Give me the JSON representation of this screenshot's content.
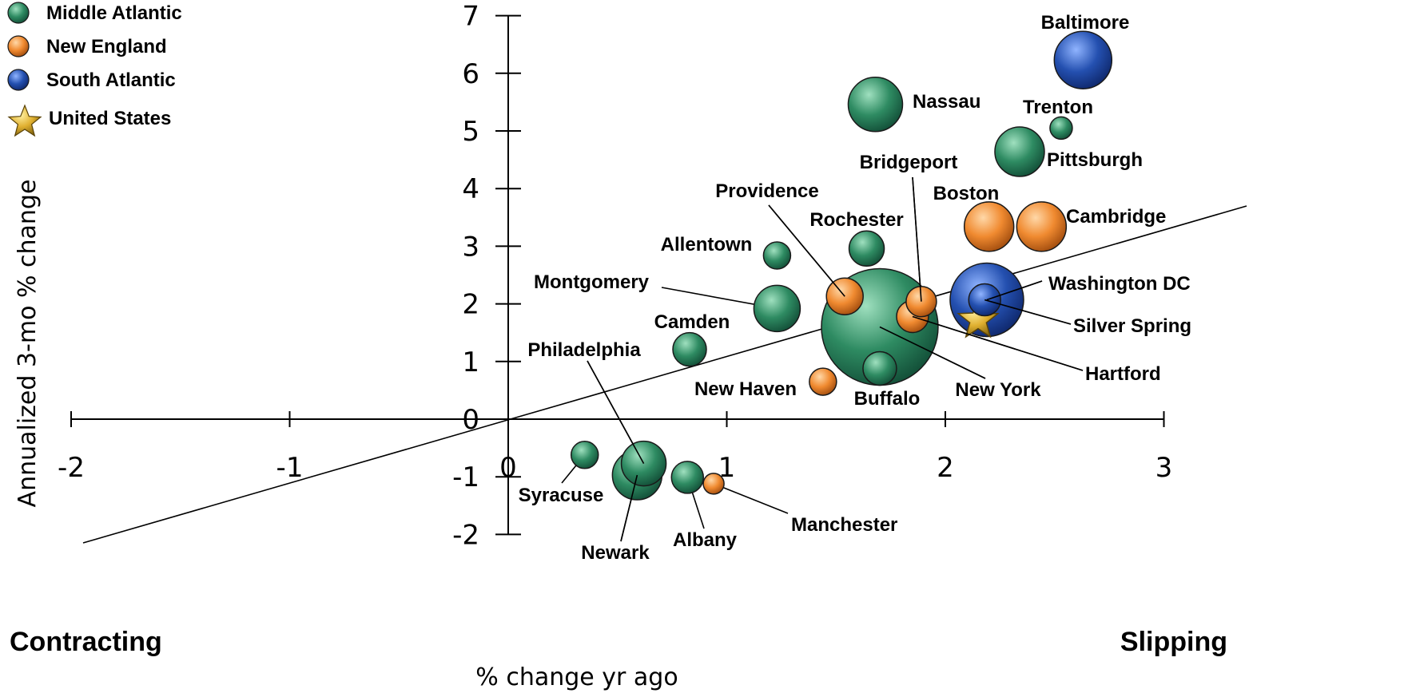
{
  "chart_data": {
    "type": "scatter",
    "xlabel": "% change yr ago",
    "ylabel": "Annualized 3-mo % change",
    "xlim": [
      -2,
      3
    ],
    "ylim": [
      -2,
      7
    ],
    "x_ticks": [
      "-2",
      "-1",
      "0",
      "1",
      "2",
      "3"
    ],
    "y_ticks": [
      "-2",
      "-1",
      "0",
      "1",
      "2",
      "3",
      "4",
      "5",
      "6",
      "7"
    ],
    "quadrant_labels": {
      "left": "Contracting",
      "right": "Slipping"
    },
    "legend": [
      {
        "name": "Middle Atlantic",
        "color": "#2e8b62",
        "marker": "circle"
      },
      {
        "name": "New England",
        "color": "#f08a30",
        "marker": "circle"
      },
      {
        "name": "South Atlantic",
        "color": "#2450b0",
        "marker": "circle"
      },
      {
        "name": "United States",
        "color": "#e0b030",
        "marker": "star"
      }
    ],
    "points": [
      {
        "name": "Baltimore",
        "region": "South Atlantic",
        "x": 2.63,
        "y": 6.23,
        "size": 36
      },
      {
        "name": "Nassau",
        "region": "Middle Atlantic",
        "x": 1.68,
        "y": 5.46,
        "size": 34
      },
      {
        "name": "Trenton",
        "region": "Middle Atlantic",
        "x": 2.53,
        "y": 5.05,
        "size": 14
      },
      {
        "name": "Pittsburgh",
        "region": "Middle Atlantic",
        "x": 2.34,
        "y": 4.64,
        "size": 31
      },
      {
        "name": "Boston",
        "region": "New England",
        "x": 2.2,
        "y": 3.34,
        "size": 31
      },
      {
        "name": "Cambridge",
        "region": "New England",
        "x": 2.44,
        "y": 3.34,
        "size": 31
      },
      {
        "name": "Rochester",
        "region": "Middle Atlantic",
        "x": 1.64,
        "y": 2.96,
        "size": 22
      },
      {
        "name": "Allentown",
        "region": "Middle Atlantic",
        "x": 1.23,
        "y": 2.84,
        "size": 17
      },
      {
        "name": "Montgomery",
        "region": "Middle Atlantic",
        "x": 1.23,
        "y": 1.92,
        "size": 29
      },
      {
        "name": "Providence",
        "region": "New England",
        "x": 1.54,
        "y": 2.13,
        "size": 23
      },
      {
        "name": "Bridgeport",
        "region": "New England",
        "x": 1.89,
        "y": 2.04,
        "size": 19
      },
      {
        "name": "Hartford",
        "region": "New England",
        "x": 1.85,
        "y": 1.78,
        "size": 20
      },
      {
        "name": "New York",
        "region": "Middle Atlantic",
        "x": 1.7,
        "y": 1.6,
        "size": 73
      },
      {
        "name": "Washington DC",
        "region": "South Atlantic",
        "x": 2.19,
        "y": 2.07,
        "size": 46
      },
      {
        "name": "Silver Spring",
        "region": "South Atlantic",
        "x": 2.18,
        "y": 2.07,
        "size": 20
      },
      {
        "name": "United States",
        "region": "United States",
        "x": 2.15,
        "y": 1.72,
        "size": 26
      },
      {
        "name": "Camden",
        "region": "Middle Atlantic",
        "x": 0.83,
        "y": 1.21,
        "size": 21
      },
      {
        "name": "New Haven",
        "region": "New England",
        "x": 1.44,
        "y": 0.65,
        "size": 17
      },
      {
        "name": "Buffalo",
        "region": "Middle Atlantic",
        "x": 1.7,
        "y": 0.88,
        "size": 21
      },
      {
        "name": "Syracuse",
        "region": "Middle Atlantic",
        "x": 0.35,
        "y": -0.62,
        "size": 17
      },
      {
        "name": "Philadelphia",
        "region": "Middle Atlantic",
        "x": 0.62,
        "y": -0.77,
        "size": 28
      },
      {
        "name": "Newark",
        "region": "Middle Atlantic",
        "x": 0.59,
        "y": -0.97,
        "size": 31
      },
      {
        "name": "Albany",
        "region": "Middle Atlantic",
        "x": 0.82,
        "y": -1.01,
        "size": 20
      },
      {
        "name": "Manchester",
        "region": "New England",
        "x": 0.94,
        "y": -1.12,
        "size": 13
      }
    ]
  }
}
